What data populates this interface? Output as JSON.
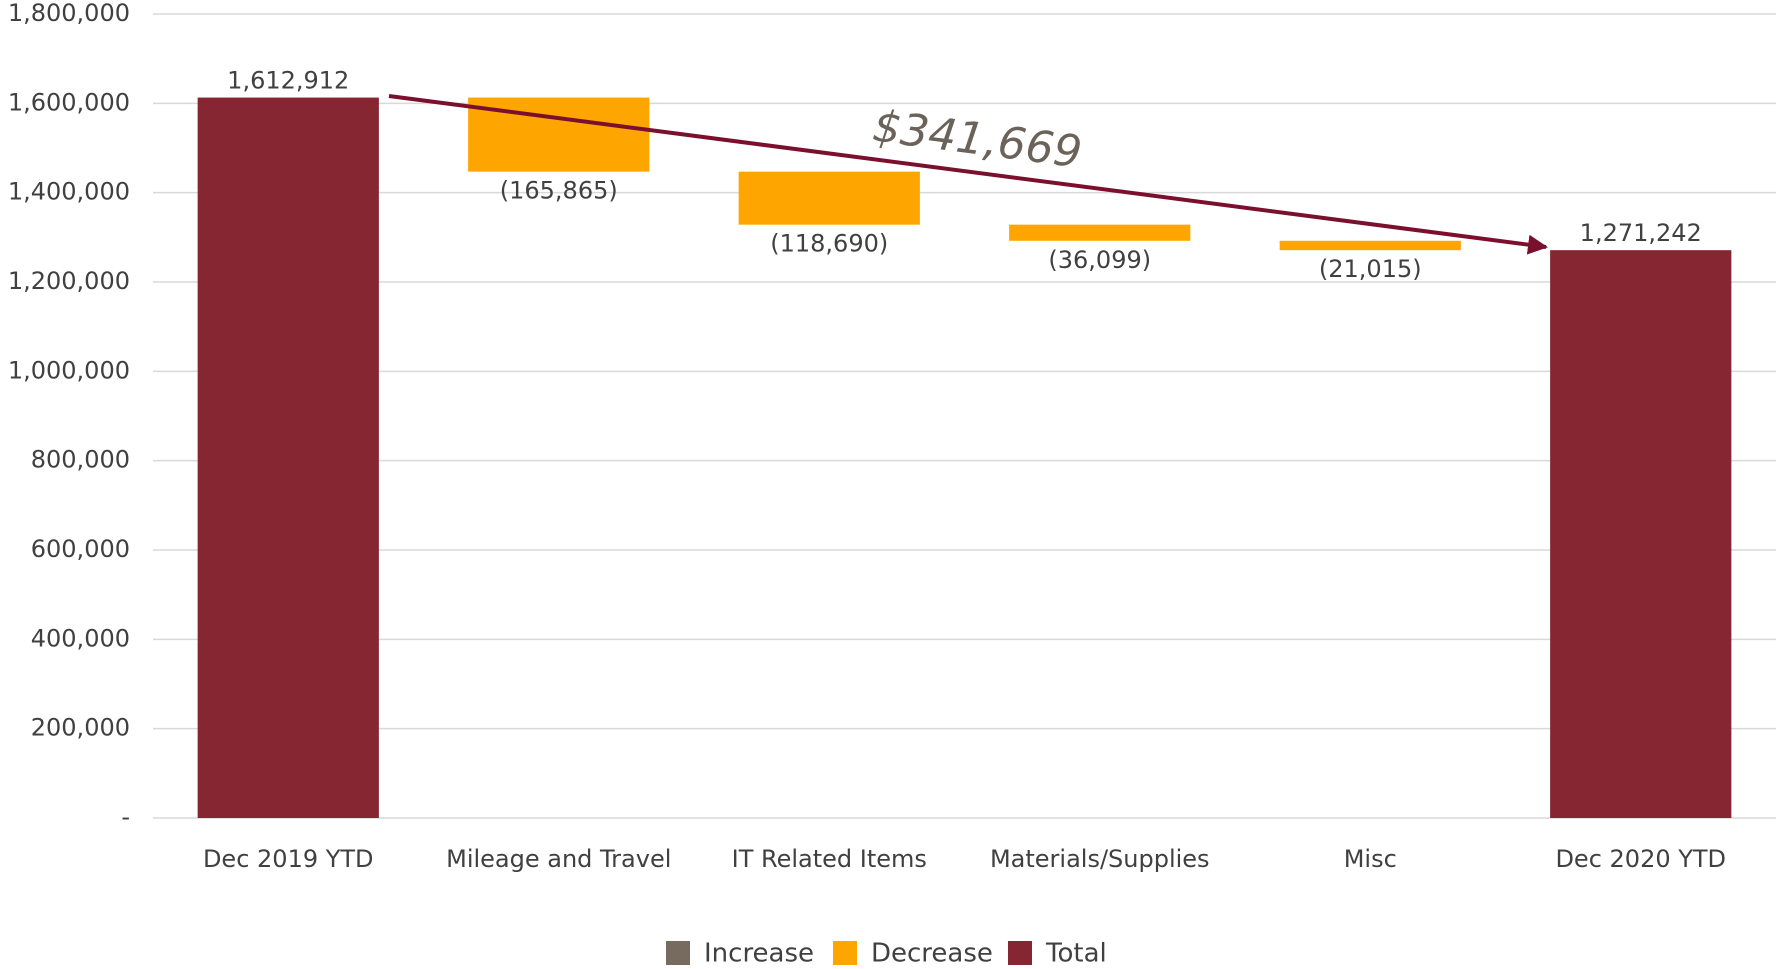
{
  "chart_data": {
    "type": "waterfall",
    "categories": [
      "Dec 2019 YTD",
      "Mileage and Travel",
      "IT Related Items",
      "Materials/Supplies",
      "Misc",
      "Dec 2020 YTD"
    ],
    "values": [
      1612912,
      -165865,
      -118690,
      -36099,
      -21015,
      1271242
    ],
    "value_labels": [
      "1,612,912",
      "(165,865)",
      "(118,690)",
      "(36,099)",
      "(21,015)",
      "1,271,242"
    ],
    "measure": [
      "total",
      "relative",
      "relative",
      "relative",
      "relative",
      "total"
    ],
    "colors": {
      "increase": "#776b60",
      "decrease": "#ffa500",
      "total": "#862633"
    },
    "legend": [
      {
        "name": "Increase",
        "color": "#776b60"
      },
      {
        "name": "Decrease",
        "color": "#ffa500"
      },
      {
        "name": "Total",
        "color": "#862633"
      }
    ],
    "annotation": "$341,669",
    "ylim": [
      0,
      1800000
    ],
    "yticks": [
      {
        "value": 0,
        "label": "-"
      },
      {
        "value": 200000,
        "label": "200,000"
      },
      {
        "value": 400000,
        "label": "400,000"
      },
      {
        "value": 600000,
        "label": "600,000"
      },
      {
        "value": 800000,
        "label": "800,000"
      },
      {
        "value": 1000000,
        "label": "1,000,000"
      },
      {
        "value": 1200000,
        "label": "1,200,000"
      },
      {
        "value": 1400000,
        "label": "1,400,000"
      },
      {
        "value": 1600000,
        "label": "1,600,000"
      },
      {
        "value": 1800000,
        "label": "1,800,000"
      }
    ],
    "grid": true
  }
}
